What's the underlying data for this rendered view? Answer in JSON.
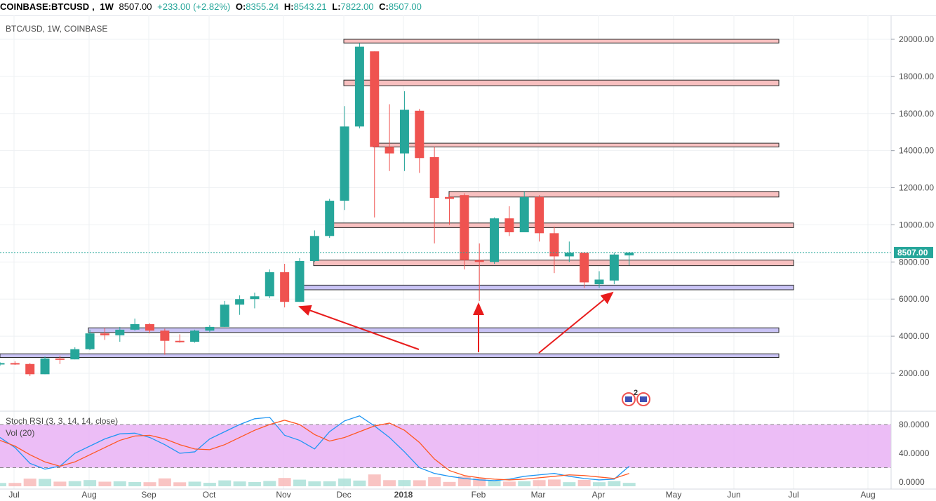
{
  "header": {
    "symbol": "COINBASE:BTCUSD",
    "interval": "1W",
    "last": "8507.00",
    "change": "+233.00 (+2.82%)",
    "o_label": "O:",
    "o": "8355.24",
    "h_label": "H:",
    "h": "8543.21",
    "l_label": "L:",
    "l": "7822.00",
    "c_label": "C:",
    "c": "8507.00"
  },
  "chart_title": "BTC/USD, 1W, COINBASE",
  "price_label": "8507.00",
  "stoch_label": "Stoch RSI (3, 3, 14, 14, close)",
  "vol_label": "Vol (20)",
  "event_badge": "2",
  "colors": {
    "up": "#26a69a",
    "down": "#ef5350",
    "resistance_zone": "#f8c0c0",
    "support_zone": "#c9c3f5",
    "arrow": "#e81c1c",
    "stoch_k": "#2196f3",
    "stoch_d": "#ff5722",
    "stoch_band": "#e9b1f5"
  },
  "chart_data": [
    {
      "type": "candlestick",
      "title": "BTC/USD, 1W, COINBASE",
      "x_ticks": [
        "Jul",
        "Aug",
        "Sep",
        "Oct",
        "Nov",
        "Dec",
        "2018",
        "Feb",
        "Mar",
        "Apr",
        "May",
        "Jun",
        "Jul",
        "Aug"
      ],
      "y_ticks": [
        "2000.00",
        "4000.00",
        "6000.00",
        "8000.00",
        "10000.00",
        "12000.00",
        "14000.00",
        "16000.00",
        "18000.00",
        "20000.00"
      ],
      "ylim": [
        0,
        21000
      ],
      "current_price": 8507,
      "candles": [
        {
          "o": 2500,
          "h": 2600,
          "l": 2400,
          "c": 2550
        },
        {
          "o": 2550,
          "h": 2650,
          "l": 2450,
          "c": 2500
        },
        {
          "o": 2500,
          "h": 2550,
          "l": 1850,
          "c": 1950
        },
        {
          "o": 1950,
          "h": 2900,
          "l": 1950,
          "c": 2800
        },
        {
          "o": 2800,
          "h": 2950,
          "l": 2500,
          "c": 2750
        },
        {
          "o": 2750,
          "h": 3400,
          "l": 2750,
          "c": 3300
        },
        {
          "o": 3300,
          "h": 4350,
          "l": 3250,
          "c": 4150
        },
        {
          "o": 4150,
          "h": 4450,
          "l": 3800,
          "c": 4050
        },
        {
          "o": 4050,
          "h": 4500,
          "l": 3700,
          "c": 4350
        },
        {
          "o": 4350,
          "h": 4950,
          "l": 4300,
          "c": 4650
        },
        {
          "o": 4650,
          "h": 4700,
          "l": 4150,
          "c": 4300
        },
        {
          "o": 4300,
          "h": 4400,
          "l": 3000,
          "c": 3750
        },
        {
          "o": 3750,
          "h": 4100,
          "l": 3650,
          "c": 3700
        },
        {
          "o": 3700,
          "h": 4350,
          "l": 3650,
          "c": 4300
        },
        {
          "o": 4300,
          "h": 4600,
          "l": 4200,
          "c": 4500
        },
        {
          "o": 4500,
          "h": 5900,
          "l": 4500,
          "c": 5700
        },
        {
          "o": 5700,
          "h": 6200,
          "l": 5150,
          "c": 6000
        },
        {
          "o": 6000,
          "h": 6350,
          "l": 5500,
          "c": 6150
        },
        {
          "o": 6150,
          "h": 7600,
          "l": 6050,
          "c": 7450
        },
        {
          "o": 7450,
          "h": 7900,
          "l": 5550,
          "c": 5850
        },
        {
          "o": 5850,
          "h": 8200,
          "l": 5850,
          "c": 8050
        },
        {
          "o": 8050,
          "h": 9700,
          "l": 8000,
          "c": 9400
        },
        {
          "o": 9400,
          "h": 11400,
          "l": 9300,
          "c": 11300
        },
        {
          "o": 11300,
          "h": 16400,
          "l": 10800,
          "c": 15300
        },
        {
          "o": 15300,
          "h": 19800,
          "l": 15200,
          "c": 19600
        },
        {
          "o": 19350,
          "h": 19350,
          "l": 10400,
          "c": 14200
        },
        {
          "o": 14200,
          "h": 16500,
          "l": 12900,
          "c": 13850
        },
        {
          "o": 13850,
          "h": 17200,
          "l": 12900,
          "c": 16200
        },
        {
          "o": 16150,
          "h": 16250,
          "l": 12800,
          "c": 13600
        },
        {
          "o": 13650,
          "h": 14200,
          "l": 9000,
          "c": 11450
        },
        {
          "o": 11500,
          "h": 11650,
          "l": 10000,
          "c": 11400
        },
        {
          "o": 11600,
          "h": 11700,
          "l": 7600,
          "c": 8100
        },
        {
          "o": 8100,
          "h": 9000,
          "l": 5900,
          "c": 8000
        },
        {
          "o": 8000,
          "h": 10400,
          "l": 7900,
          "c": 10350
        },
        {
          "o": 10350,
          "h": 11000,
          "l": 9400,
          "c": 9600
        },
        {
          "o": 9600,
          "h": 11800,
          "l": 9600,
          "c": 11500
        },
        {
          "o": 11500,
          "h": 11600,
          "l": 9100,
          "c": 9550
        },
        {
          "o": 9550,
          "h": 9900,
          "l": 7400,
          "c": 8300
        },
        {
          "o": 8300,
          "h": 9100,
          "l": 8000,
          "c": 8500
        },
        {
          "o": 8500,
          "h": 8500,
          "l": 6600,
          "c": 6900
        },
        {
          "o": 6800,
          "h": 7500,
          "l": 6600,
          "c": 7050
        },
        {
          "o": 7000,
          "h": 8500,
          "l": 6800,
          "c": 8400
        },
        {
          "o": 8355.24,
          "h": 8543.21,
          "l": 7822,
          "c": 8507
        }
      ],
      "resistance_zones": [
        {
          "low": 19800,
          "high": 20000
        },
        {
          "low": 17500,
          "high": 17800
        },
        {
          "low": 14200,
          "high": 14400
        },
        {
          "low": 11500,
          "high": 11800
        },
        {
          "low": 9850,
          "high": 10100
        },
        {
          "low": 7800,
          "high": 8100
        }
      ],
      "support_zones": [
        {
          "low": 6500,
          "high": 6750
        },
        {
          "low": 4200,
          "high": 4450
        },
        {
          "low": 2850,
          "high": 3050
        }
      ]
    },
    {
      "type": "line",
      "title": "Stoch RSI (3, 3, 14, 14, close)",
      "y_ticks": [
        "80.0000",
        "40.0000",
        "0.0000"
      ],
      "ylim": [
        -5,
        95
      ],
      "band": [
        20,
        80
      ],
      "series": [
        {
          "values": [
            62,
            48,
            26,
            18,
            22,
            40,
            50,
            60,
            67,
            68,
            62,
            52,
            40,
            42,
            60,
            70,
            80,
            88,
            90,
            65,
            58,
            46,
            70,
            85,
            92,
            78,
            62,
            42,
            20,
            12,
            8,
            5,
            3,
            2,
            4,
            8,
            10,
            12,
            8,
            5,
            3,
            4,
            22
          ]
        },
        {
          "values": [
            58,
            50,
            38,
            28,
            22,
            28,
            38,
            48,
            58,
            64,
            65,
            60,
            52,
            46,
            45,
            52,
            62,
            72,
            80,
            86,
            80,
            66,
            57,
            62,
            70,
            78,
            82,
            72,
            55,
            32,
            16,
            9,
            6,
            4,
            3,
            4,
            6,
            8,
            10,
            9,
            7,
            5,
            12
          ]
        }
      ]
    }
  ]
}
